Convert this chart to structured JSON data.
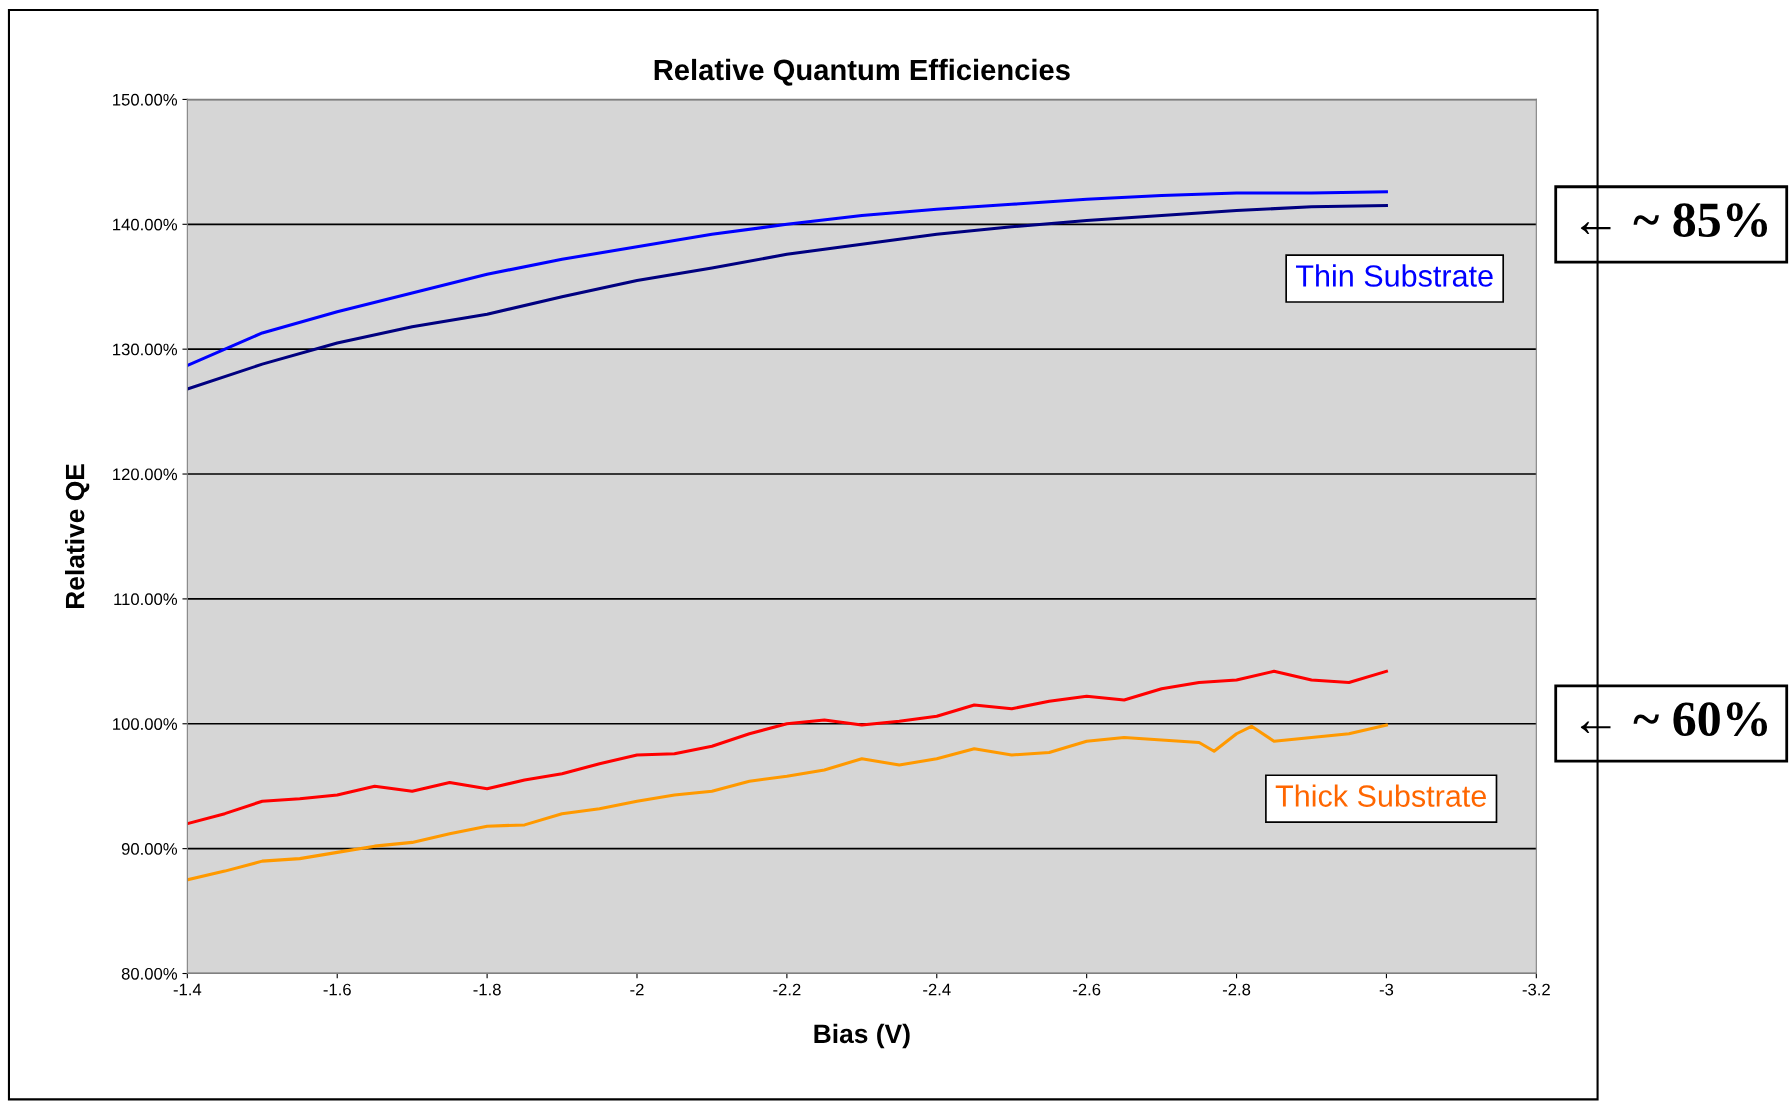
{
  "chart_data": {
    "type": "line",
    "title": "Relative Quantum Efficiencies",
    "xlabel": "Bias (V)",
    "ylabel": "Relative QE",
    "xlim": [
      -1.4,
      -3.2
    ],
    "xticks": [
      -1.4,
      -1.6,
      -1.8,
      -2,
      -2.2,
      -2.4,
      -2.6,
      -2.8,
      -3,
      -3.2
    ],
    "ylim": [
      80,
      150
    ],
    "yticks": [
      {
        "value": 80,
        "label": "80.00%"
      },
      {
        "value": 90,
        "label": "90.00%"
      },
      {
        "value": 100,
        "label": "100.00%"
      },
      {
        "value": 110,
        "label": "110.00%"
      },
      {
        "value": 120,
        "label": "120.00%"
      },
      {
        "value": 130,
        "label": "130.00%"
      },
      {
        "value": 140,
        "label": "140.00%"
      },
      {
        "value": 150,
        "label": "150.00%"
      }
    ],
    "grid": "y",
    "legend": false,
    "marker": "none",
    "line_style": "solid",
    "series": [
      {
        "color": "#0000ff",
        "x": [
          -1.4,
          -1.5,
          -1.6,
          -1.7,
          -1.8,
          -1.9,
          -2.0,
          -2.1,
          -2.2,
          -2.3,
          -2.4,
          -2.5,
          -2.6,
          -2.7,
          -2.8,
          -2.9,
          -3.0
        ],
        "values": [
          128.7,
          131.3,
          133,
          134.5,
          136,
          137.2,
          138.2,
          139.2,
          140,
          140.7,
          141.2,
          141.6,
          142,
          142.3,
          142.5,
          142.5,
          142.6
        ]
      },
      {
        "color": "#000080",
        "x": [
          -1.4,
          -1.5,
          -1.6,
          -1.7,
          -1.8,
          -1.9,
          -2.0,
          -2.1,
          -2.2,
          -2.3,
          -2.4,
          -2.5,
          -2.6,
          -2.7,
          -2.8,
          -2.9,
          -3.0
        ],
        "values": [
          126.8,
          128.8,
          130.5,
          131.8,
          132.8,
          134.2,
          135.5,
          136.5,
          137.6,
          138.4,
          139.2,
          139.8,
          140.3,
          140.7,
          141.1,
          141.4,
          141.5
        ]
      },
      {
        "color": "#ff0000",
        "x": [
          -1.4,
          -1.45,
          -1.5,
          -1.55,
          -1.6,
          -1.65,
          -1.7,
          -1.75,
          -1.8,
          -1.85,
          -1.9,
          -1.95,
          -2.0,
          -2.05,
          -2.1,
          -2.15,
          -2.2,
          -2.25,
          -2.3,
          -2.35,
          -2.4,
          -2.45,
          -2.5,
          -2.55,
          -2.6,
          -2.65,
          -2.7,
          -2.75,
          -2.8,
          -2.85,
          -2.9,
          -2.95,
          -3.0
        ],
        "values": [
          92,
          92.8,
          93.8,
          94,
          94.3,
          95,
          94.6,
          95.3,
          94.8,
          95.5,
          96,
          96.8,
          97.5,
          97.6,
          98.2,
          99.2,
          100,
          100.3,
          99.9,
          100.2,
          100.6,
          101.5,
          101.2,
          101.8,
          102.2,
          101.9,
          102.8,
          103.3,
          103.5,
          104.2,
          103.5,
          103.3,
          104.2
        ]
      },
      {
        "color": "#ff9900",
        "x": [
          -1.4,
          -1.45,
          -1.5,
          -1.55,
          -1.6,
          -1.65,
          -1.7,
          -1.75,
          -1.8,
          -1.85,
          -1.9,
          -1.95,
          -2.0,
          -2.05,
          -2.1,
          -2.15,
          -2.2,
          -2.25,
          -2.3,
          -2.35,
          -2.4,
          -2.45,
          -2.5,
          -2.55,
          -2.6,
          -2.65,
          -2.7,
          -2.75,
          -2.77,
          -2.8,
          -2.82,
          -2.85,
          -2.9,
          -2.95,
          -3.0
        ],
        "values": [
          87.5,
          88.2,
          89,
          89.2,
          89.7,
          90.2,
          90.5,
          91.2,
          91.8,
          91.9,
          92.8,
          93.2,
          93.8,
          94.3,
          94.6,
          95.4,
          95.8,
          96.3,
          97.2,
          96.7,
          97.2,
          98,
          97.5,
          97.7,
          98.6,
          98.9,
          98.7,
          98.5,
          97.8,
          99.2,
          99.8,
          98.6,
          98.9,
          99.2,
          99.9
        ]
      }
    ],
    "annotations": [
      "Thin Substrate",
      "Thick Substrate",
      "← ~ 85%",
      "← ~ 60%"
    ]
  }
}
